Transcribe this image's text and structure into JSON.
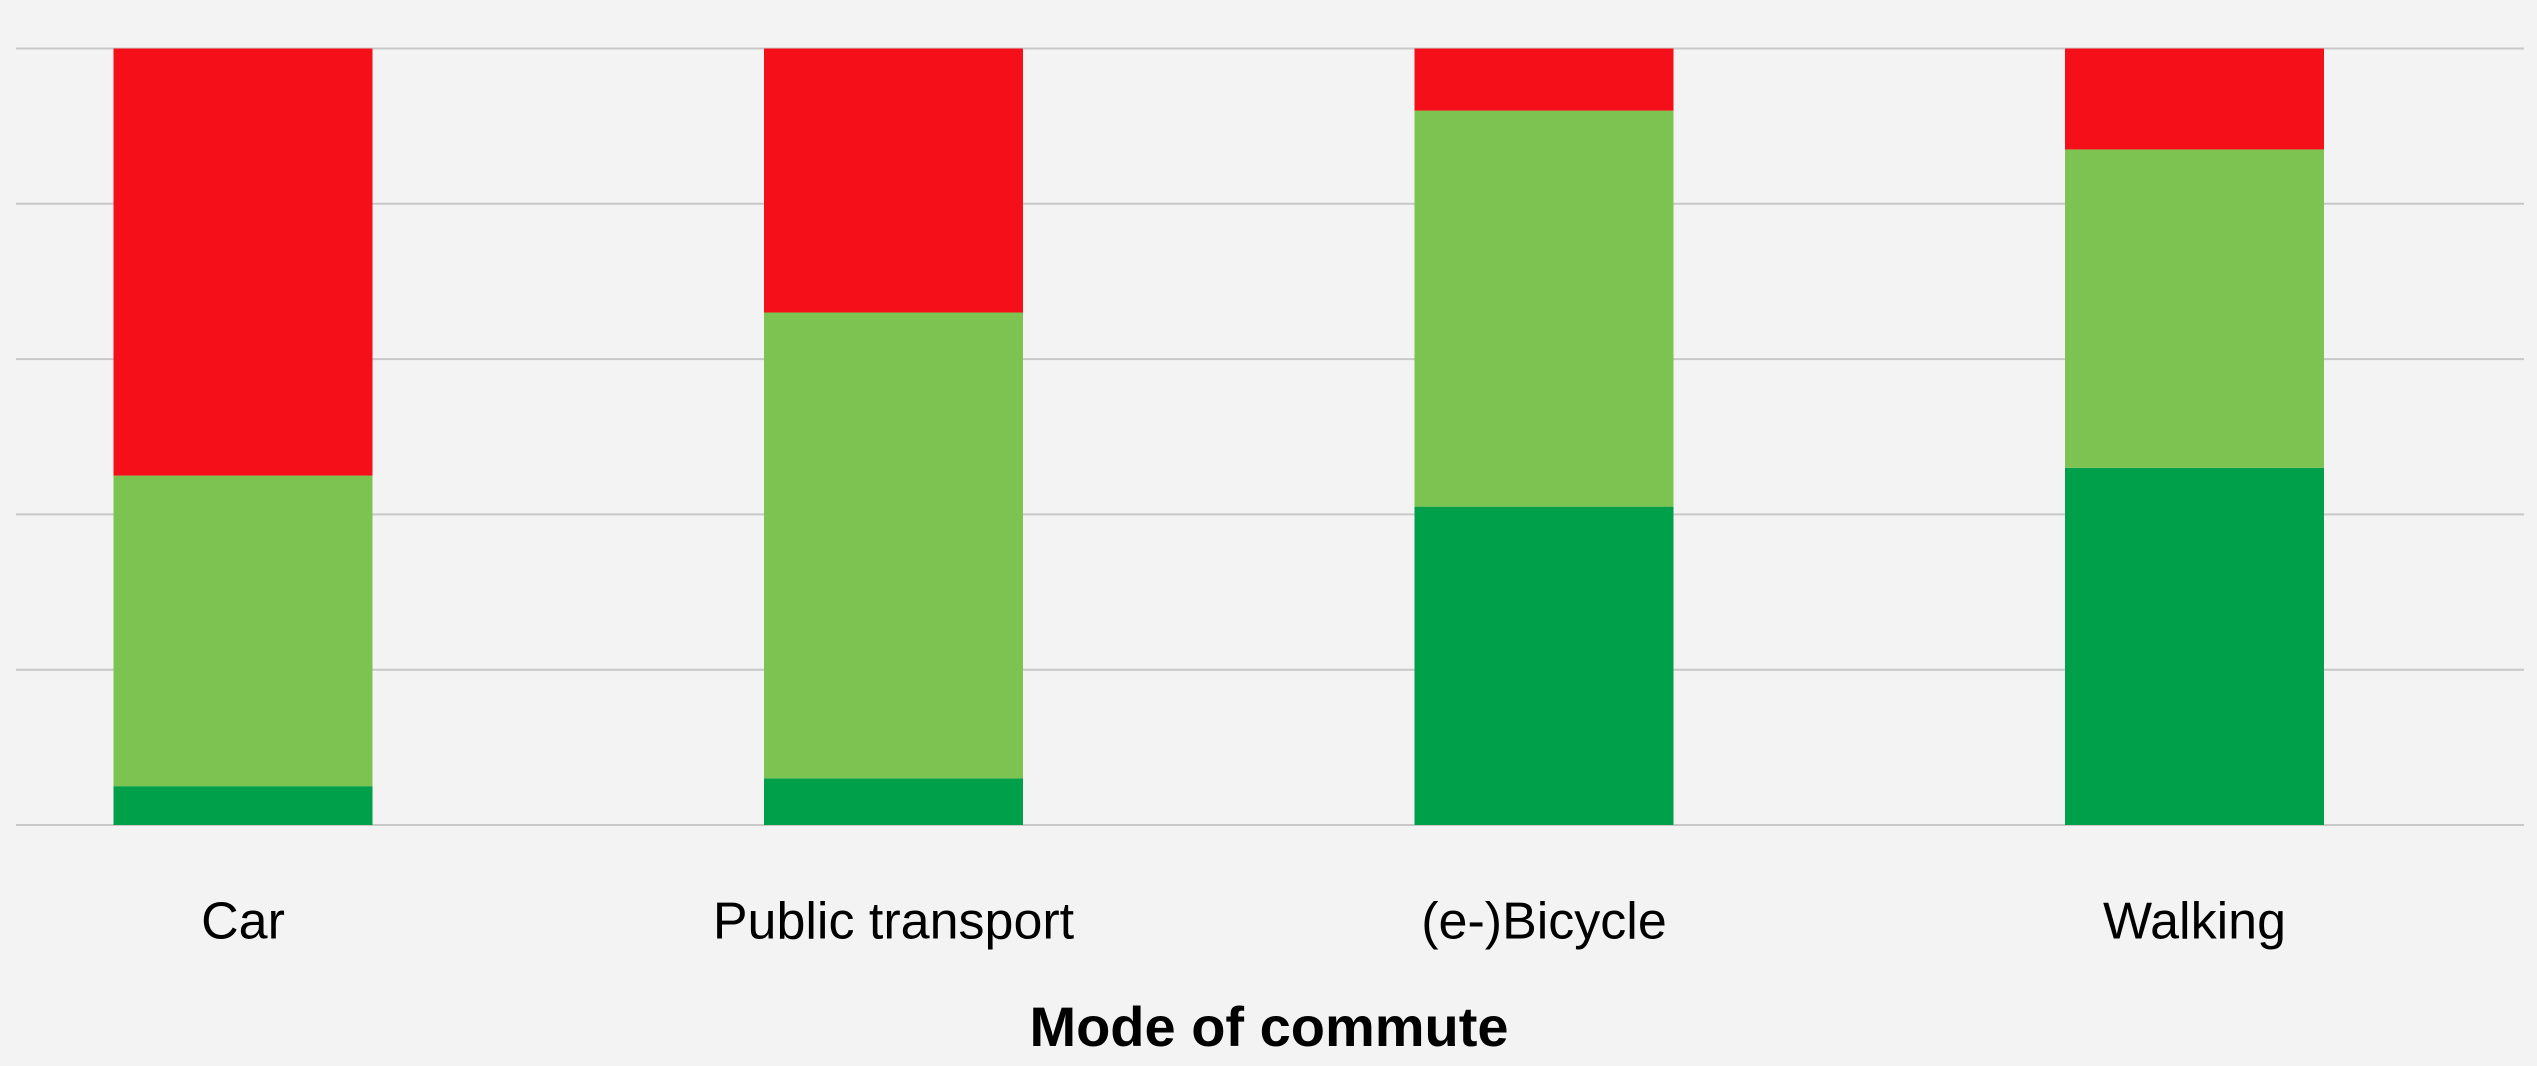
{
  "chart_data": {
    "type": "stacked_bar",
    "x_label": "Mode of commute",
    "categories": [
      "Car",
      "Public transport",
      "(e-)Bicycle",
      "Walking"
    ],
    "series": [
      {
        "color": "#00a04a",
        "values": [
          5,
          6,
          41,
          46
        ]
      },
      {
        "color": "#7dc352",
        "values": [
          40,
          60,
          51,
          41
        ]
      },
      {
        "color": "#f40f19",
        "values": [
          55,
          34,
          8,
          13
        ]
      }
    ],
    "ylim": [
      0,
      100
    ],
    "yticks": [
      0,
      20,
      40,
      60,
      80,
      100
    ],
    "grid": true
  }
}
